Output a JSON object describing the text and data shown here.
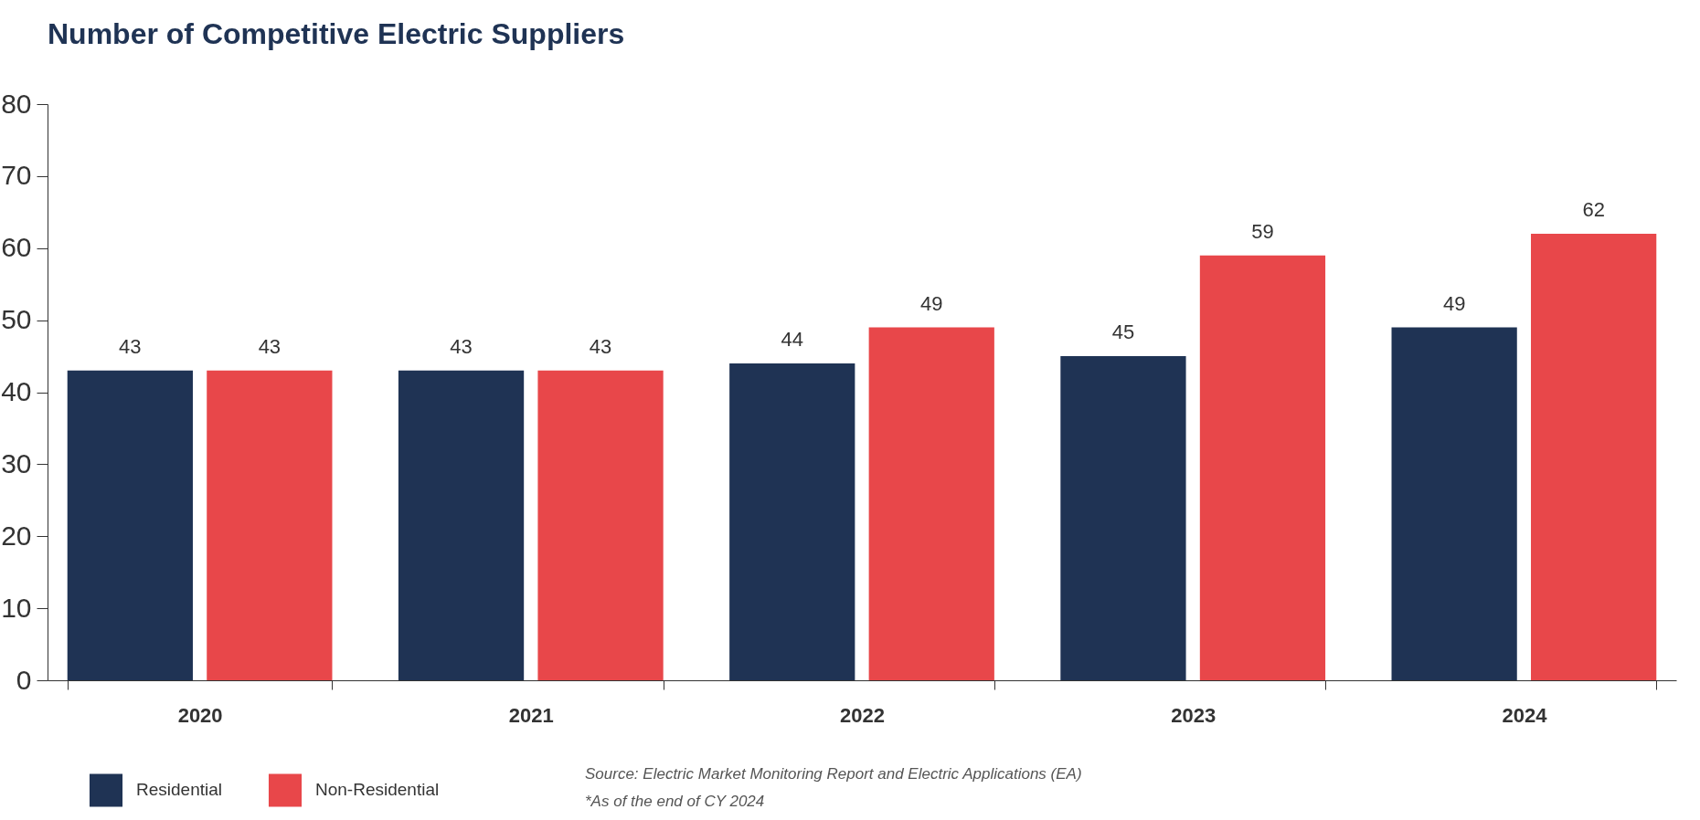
{
  "chart_data": {
    "type": "bar",
    "title": "Number of Competitive Electric Suppliers",
    "categories": [
      "2020",
      "2021",
      "2022",
      "2023",
      "2024"
    ],
    "series": [
      {
        "name": "Residential",
        "color": "#1f3354",
        "values": [
          43,
          43,
          44,
          45,
          49
        ]
      },
      {
        "name": "Non-Residential",
        "color": "#e8474a",
        "values": [
          43,
          43,
          49,
          59,
          62
        ]
      }
    ],
    "ylim": [
      0,
      80
    ],
    "yticks": [
      0,
      10,
      20,
      30,
      40,
      50,
      60,
      70,
      80
    ],
    "grid": false,
    "legend": "bottom left",
    "data_labels": true,
    "annotations": [
      "Source: Electric Market Monitoring Report and Electric Applications (EA)",
      "*As of the end of CY 2024"
    ]
  }
}
